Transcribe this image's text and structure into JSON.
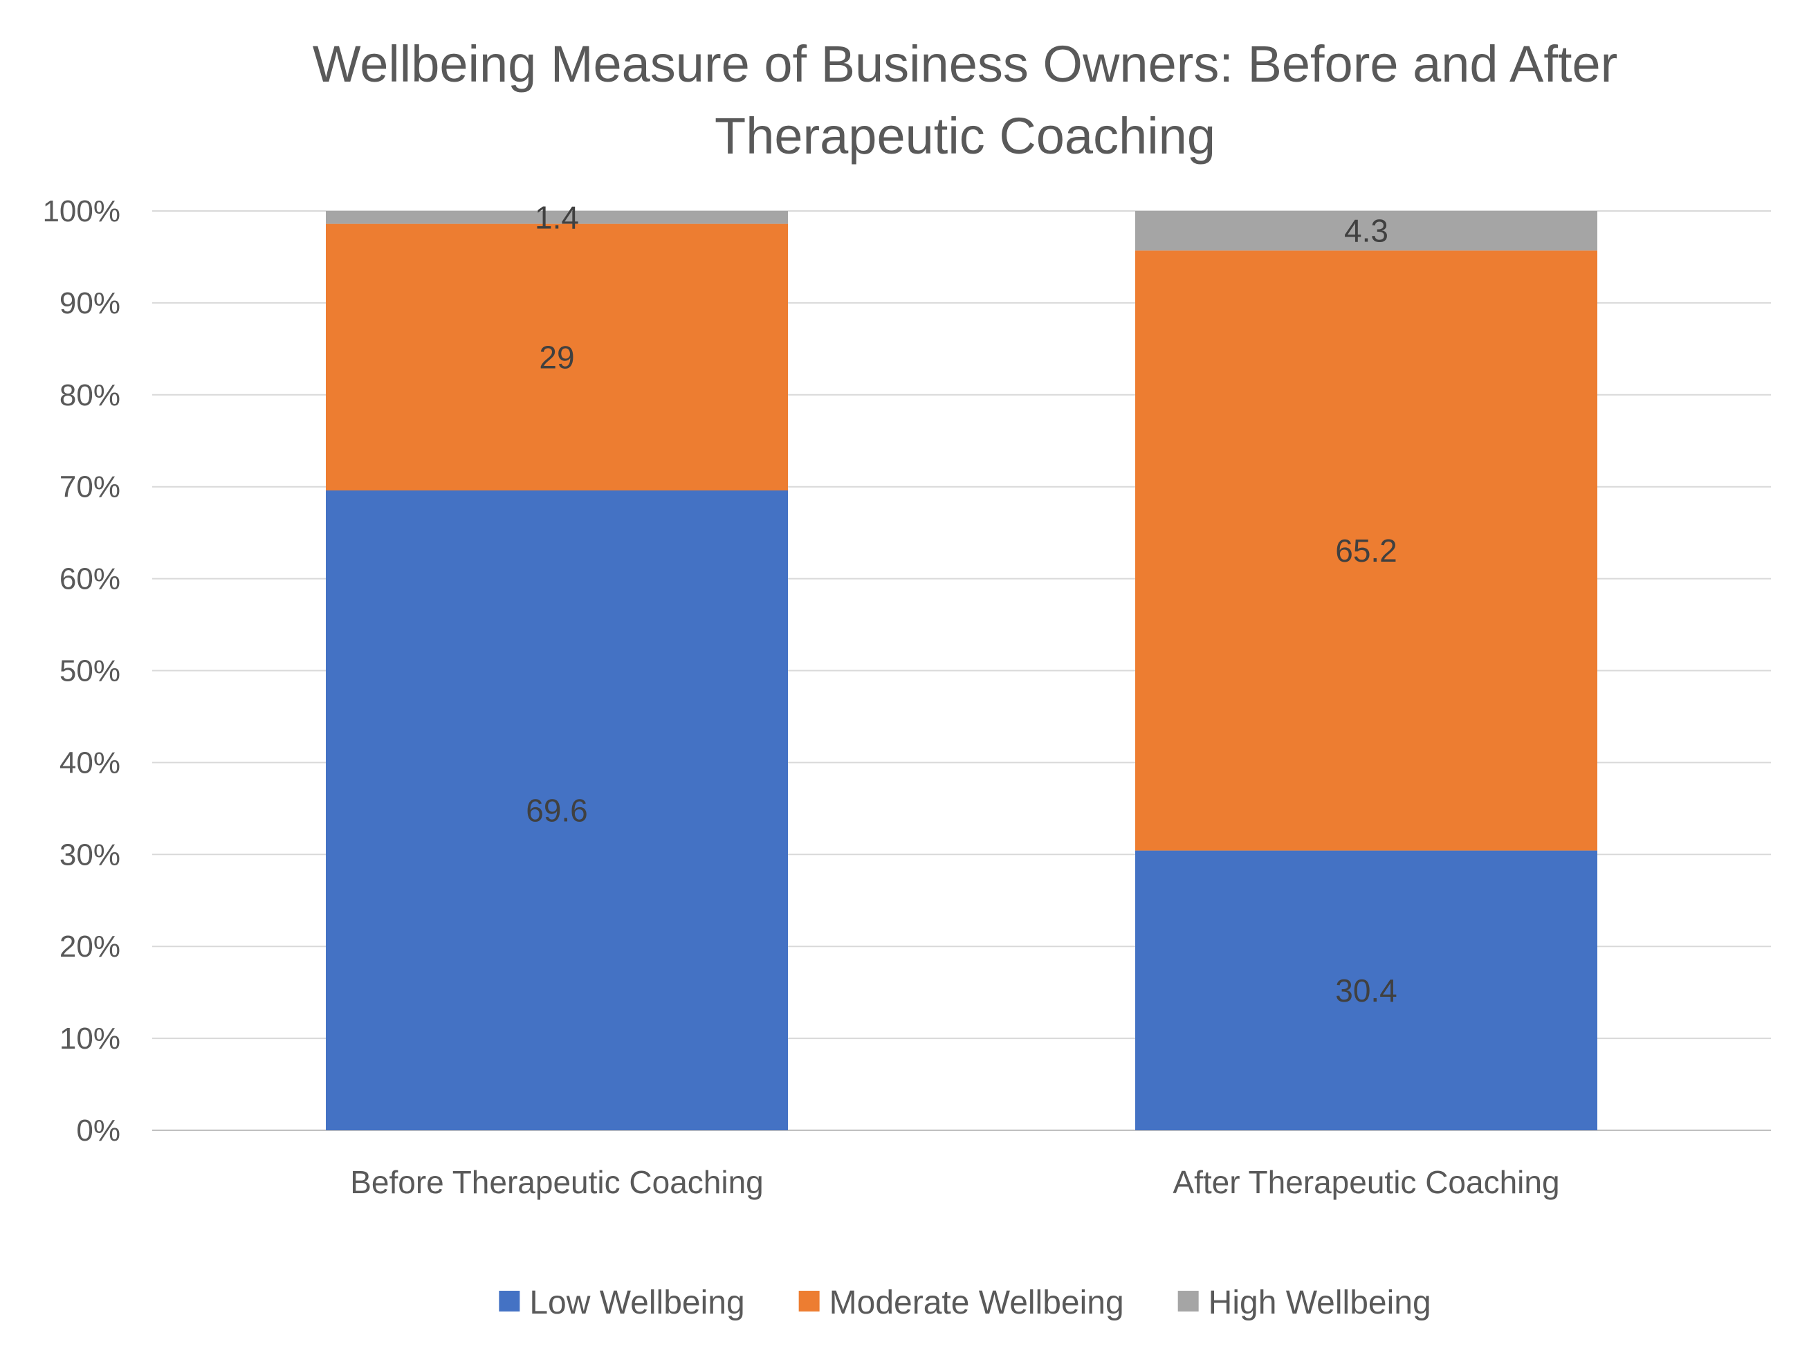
{
  "chart_data": {
    "type": "bar",
    "stacked": true,
    "title_lines": [
      "Wellbeing Measure of Business Owners: Before and After",
      "Therapeutic Coaching"
    ],
    "categories": [
      "Before Therapeutic Coaching",
      "After Therapeutic Coaching"
    ],
    "series": [
      {
        "name": "Low Wellbeing",
        "color": "#4472C4",
        "values": [
          69.6,
          30.4
        ]
      },
      {
        "name": "Moderate Wellbeing",
        "color": "#ED7D31",
        "values": [
          29,
          65.2
        ]
      },
      {
        "name": "High Wellbeing",
        "color": "#A5A5A5",
        "values": [
          1.4,
          4.3
        ]
      }
    ],
    "ylim": [
      0,
      100
    ],
    "y_ticks": [
      "0%",
      "10%",
      "20%",
      "30%",
      "40%",
      "50%",
      "60%",
      "70%",
      "80%",
      "90%",
      "100%"
    ],
    "grid": true,
    "legend_position": "bottom"
  }
}
